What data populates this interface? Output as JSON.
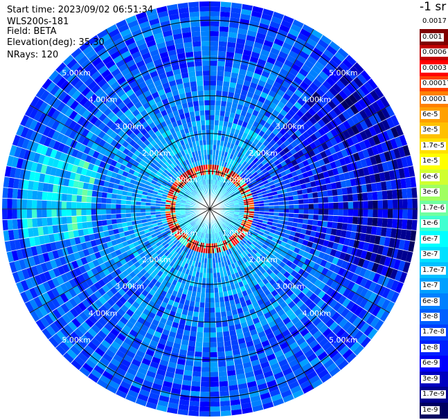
{
  "header": {
    "start_time": "Start time: 2023/09/02 06:51:34",
    "instrument": "WLS200s-181",
    "field": "Field: BETA",
    "elevation": "Elevation(deg): 35.30",
    "nrays": "NRays: 120"
  },
  "colorbar": {
    "unit": "-1 sr",
    "levels": [
      "0.0017",
      "0.001",
      "0.0006",
      "0.0003",
      "0.00017",
      "0.0001",
      "6e-5",
      "3e-5",
      "1.7e-5",
      "1e-5",
      "6e-6",
      "3e-6",
      "1.7e-6",
      "1e-6",
      "6e-7",
      "3e-7",
      "1.7e-7",
      "1e-7",
      "6e-8",
      "3e-8",
      "1.7e-8",
      "1e-8",
      "6e-9",
      "3e-9",
      "1.7e-9",
      "1e-9"
    ],
    "colors": [
      "#ffffff",
      "#800000",
      "#c00000",
      "#ff0000",
      "#ff4000",
      "#ff8000",
      "#ffa000",
      "#ffc000",
      "#ffe000",
      "#ffff00",
      "#d0ff30",
      "#a0ff60",
      "#70ffa0",
      "#40ffd0",
      "#00ffff",
      "#00e0ff",
      "#00c0ff",
      "#00a0ff",
      "#0080ff",
      "#0060ff",
      "#0040ff",
      "#0020ff",
      "#0000ff",
      "#0000c0",
      "#000090",
      "#000060"
    ]
  },
  "chart_data": {
    "type": "heatmap",
    "projection": "polar",
    "nrays": 120,
    "range_rings_km": [
      1,
      2,
      3,
      4,
      5
    ],
    "range_labels": [
      "1.00km",
      "2.00km",
      "3.00km",
      "4.00km",
      "5.00km"
    ],
    "max_range_km": 5.5,
    "field": "BETA",
    "unit": "-1 sr"
  }
}
